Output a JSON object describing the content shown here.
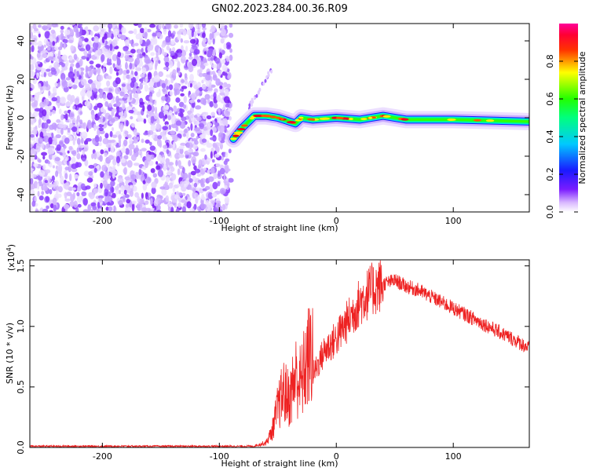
{
  "title": "GN02.2023.284.00.36.R09",
  "chart_data": [
    {
      "type": "heatmap",
      "xlabel": "Height of straight line (km)",
      "ylabel": "Frequency (Hz)",
      "xlim": [
        -262,
        165
      ],
      "ylim": [
        -49,
        49
      ],
      "xticks": [
        -200,
        -100,
        0,
        100
      ],
      "yticks": [
        -40,
        -20,
        0,
        20,
        40
      ],
      "colorbar": {
        "label": "Normalized spectral amplitude",
        "range": [
          0,
          1
        ],
        "ticks": [
          "0.0",
          "0.2",
          "0.4",
          "0.6",
          "0.8"
        ],
        "colormap": "rainbow (white-violet-blue-cyan-green-yellow-red-magenta)"
      },
      "features": {
        "noise_region_x": [
          -262,
          -90
        ],
        "signal_track": [
          {
            "x": -88,
            "y": -11
          },
          {
            "x": -80,
            "y": -5
          },
          {
            "x": -70,
            "y": 1
          },
          {
            "x": -60,
            "y": 1
          },
          {
            "x": -50,
            "y": 0
          },
          {
            "x": -45,
            "y": -1
          },
          {
            "x": -35,
            "y": -3
          },
          {
            "x": -30,
            "y": 0
          },
          {
            "x": -20,
            "y": -1
          },
          {
            "x": 0,
            "y": 0
          },
          {
            "x": 20,
            "y": -1
          },
          {
            "x": 40,
            "y": 1
          },
          {
            "x": 60,
            "y": -1
          },
          {
            "x": 100,
            "y": -1
          },
          {
            "x": 165,
            "y": -2
          }
        ],
        "faint_sidelobe": [
          {
            "x": -78,
            "y": 3
          },
          {
            "x": -70,
            "y": 10
          },
          {
            "x": -62,
            "y": 18
          },
          {
            "x": -55,
            "y": 26
          }
        ]
      }
    },
    {
      "type": "line",
      "xlabel": "Height of straight line (km)",
      "ylabel": "SNR (10 * v/v)",
      "y_multiplier": "(x10",
      "y_multiplier_exp": "4",
      "y_multiplier_close": ")",
      "xlim": [
        -262,
        165
      ],
      "ylim": [
        0,
        1.55
      ],
      "xticks": [
        -200,
        -100,
        0,
        100
      ],
      "yticks": [
        "0.0",
        "0.5",
        "1.0",
        "1.5"
      ],
      "line_color": "#ee2222",
      "series": [
        {
          "x": [
            -262,
            -200,
            -150,
            -100,
            -70,
            -60,
            -55,
            -50,
            -45,
            -40,
            -35,
            -30,
            -25,
            -20,
            -15,
            -10,
            -5,
            0,
            10,
            20,
            30,
            40,
            50,
            60,
            70,
            80,
            90,
            100,
            110,
            120,
            130,
            140,
            150,
            165
          ],
          "values": [
            0.01,
            0.01,
            0.01,
            0.01,
            0.01,
            0.03,
            0.1,
            0.25,
            0.35,
            0.3,
            0.45,
            0.4,
            0.55,
            0.6,
            0.7,
            0.8,
            0.85,
            0.9,
            1.05,
            1.2,
            1.3,
            1.35,
            1.38,
            1.33,
            1.3,
            1.25,
            1.2,
            1.15,
            1.1,
            1.05,
            1.0,
            0.95,
            0.9,
            0.82
          ]
        }
      ]
    }
  ]
}
